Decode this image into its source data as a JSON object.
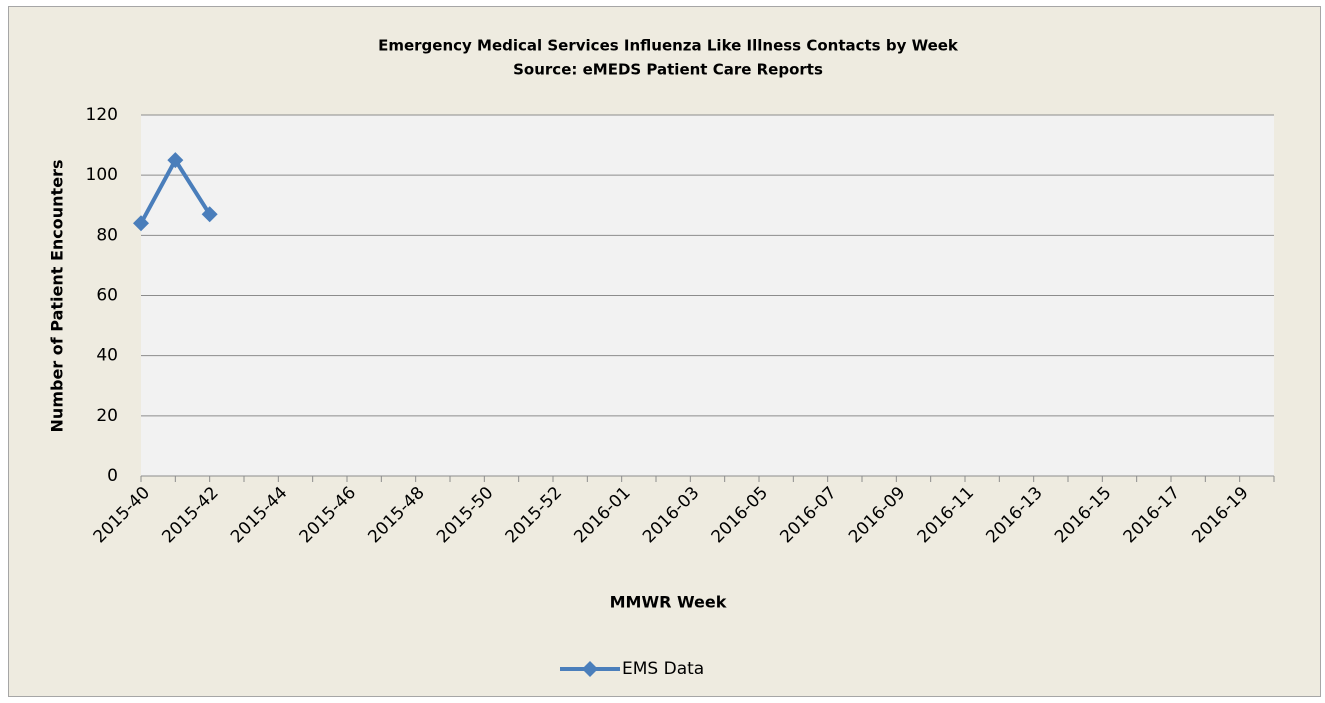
{
  "chart_data": {
    "type": "line",
    "title": "Emergency Medical Services Influenza Like Illness Contacts by Week",
    "subtitle": "Source: eMEDS Patient Care Reports",
    "x_label": "MMWR Week",
    "y_label": "Number of Patient Encounters",
    "categories": [
      "2015-40",
      null,
      "2015-42",
      null,
      "2015-44",
      null,
      "2015-46",
      null,
      "2015-48",
      null,
      "2015-50",
      null,
      "2015-52",
      null,
      "2016-01",
      null,
      "2016-03",
      null,
      "2016-05",
      null,
      "2016-07",
      null,
      "2016-09",
      null,
      "2016-11",
      null,
      "2016-13",
      null,
      "2016-15",
      null,
      "2016-17",
      null,
      "2016-19",
      null
    ],
    "series": [
      {
        "name": "EMS Data",
        "color": "#4a7ebb",
        "values": [
          84,
          105,
          87,
          null,
          null,
          null,
          null,
          null,
          null,
          null,
          null,
          null,
          null,
          null,
          null,
          null,
          null,
          null,
          null,
          null,
          null,
          null,
          null,
          null,
          null,
          null,
          null,
          null,
          null,
          null,
          null,
          null,
          null,
          null
        ]
      }
    ],
    "ylim": [
      0,
      120
    ],
    "yticks": [
      0,
      20,
      40,
      60,
      80,
      100,
      120
    ],
    "grid": true,
    "legend": "bottom"
  }
}
